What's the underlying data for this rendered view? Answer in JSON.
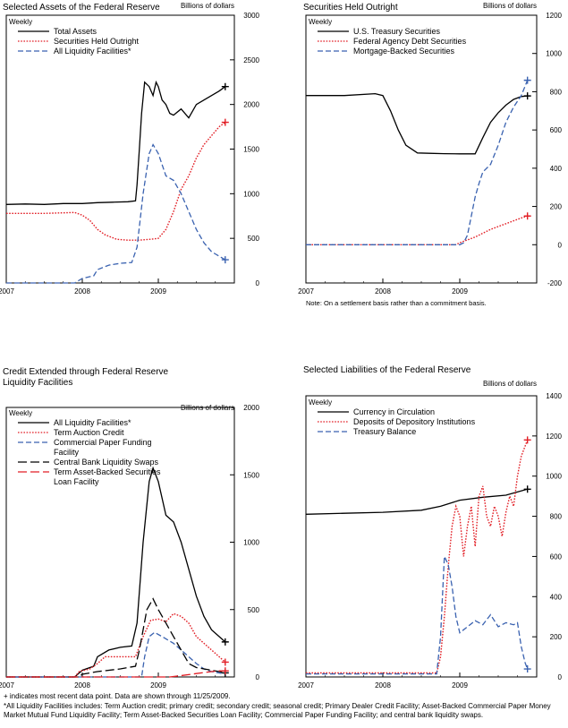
{
  "chart_data": [
    {
      "type": "line",
      "title": "Selected Assets of the Federal Reserve",
      "unit_label": "Billions of dollars",
      "frequency_label": "Weekly",
      "ylim": [
        0,
        3000
      ],
      "yticks": [
        0,
        500,
        1000,
        1500,
        2000,
        2500,
        3000
      ],
      "xlim": [
        2007.0,
        2010.0
      ],
      "xticks": [
        2007,
        2008,
        2009
      ],
      "series": [
        {
          "name": "Total Assets",
          "color": "#000000",
          "dash": "solid",
          "last_marker": true,
          "x": [
            2007.0,
            2007.25,
            2007.5,
            2007.75,
            2008.0,
            2008.2,
            2008.4,
            2008.6,
            2008.7,
            2008.72,
            2008.75,
            2008.78,
            2008.82,
            2008.88,
            2008.93,
            2008.97,
            2009.0,
            2009.05,
            2009.1,
            2009.15,
            2009.2,
            2009.3,
            2009.4,
            2009.5,
            2009.6,
            2009.7,
            2009.8,
            2009.88
          ],
          "y": [
            880,
            885,
            880,
            890,
            890,
            900,
            905,
            910,
            920,
            1100,
            1500,
            1900,
            2250,
            2200,
            2100,
            2250,
            2200,
            2050,
            2000,
            1900,
            1880,
            1950,
            1850,
            2000,
            2050,
            2100,
            2150,
            2200
          ]
        },
        {
          "name": "Securities Held Outright",
          "color": "#e21f26",
          "dash": "dot",
          "last_marker": true,
          "x": [
            2007.0,
            2007.5,
            2007.9,
            2008.0,
            2008.1,
            2008.2,
            2008.3,
            2008.45,
            2008.6,
            2008.75,
            2008.9,
            2009.0,
            2009.1,
            2009.2,
            2009.3,
            2009.4,
            2009.5,
            2009.6,
            2009.7,
            2009.8,
            2009.88
          ],
          "y": [
            780,
            780,
            790,
            760,
            700,
            600,
            540,
            490,
            480,
            480,
            490,
            500,
            600,
            800,
            1050,
            1200,
            1400,
            1550,
            1650,
            1750,
            1800
          ]
        },
        {
          "name": "All Liquidity Facilities*",
          "color": "#3a62b0",
          "dash": "dash",
          "last_marker": true,
          "x": [
            2007.0,
            2007.5,
            2007.9,
            2008.0,
            2008.15,
            2008.2,
            2008.35,
            2008.5,
            2008.65,
            2008.72,
            2008.8,
            2008.88,
            2008.93,
            2009.0,
            2009.1,
            2009.2,
            2009.3,
            2009.4,
            2009.5,
            2009.6,
            2009.7,
            2009.8,
            2009.88
          ],
          "y": [
            0,
            0,
            0,
            50,
            80,
            150,
            200,
            220,
            230,
            400,
            1000,
            1450,
            1550,
            1450,
            1200,
            1150,
            1000,
            800,
            600,
            450,
            350,
            300,
            260
          ]
        }
      ]
    },
    {
      "type": "line",
      "title": "Securities Held Outright",
      "unit_label": "Billions of dollars",
      "frequency_label": "Weekly",
      "note": "Note: On a settlement basis rather than a commitment basis.",
      "ylim": [
        -200,
        1200
      ],
      "yticks": [
        -200,
        0,
        200,
        400,
        600,
        800,
        1000,
        1200
      ],
      "xlim": [
        2007.0,
        2010.0
      ],
      "xticks": [
        2007,
        2008,
        2009
      ],
      "series": [
        {
          "name": "U.S. Treasury Securities",
          "color": "#000000",
          "dash": "solid",
          "last_marker": true,
          "x": [
            2007.0,
            2007.5,
            2007.9,
            2008.0,
            2008.1,
            2008.2,
            2008.3,
            2008.45,
            2008.6,
            2008.8,
            2009.0,
            2009.2,
            2009.3,
            2009.4,
            2009.5,
            2009.6,
            2009.7,
            2009.8,
            2009.88
          ],
          "y": [
            780,
            780,
            790,
            780,
            700,
            600,
            520,
            480,
            478,
            476,
            475,
            475,
            560,
            640,
            690,
            730,
            760,
            775,
            778
          ]
        },
        {
          "name": "Federal Agency Debt Securities",
          "color": "#e21f26",
          "dash": "dot",
          "last_marker": true,
          "x": [
            2007.0,
            2008.5,
            2008.95,
            2009.0,
            2009.2,
            2009.4,
            2009.6,
            2009.8,
            2009.88
          ],
          "y": [
            0,
            0,
            0,
            10,
            40,
            80,
            110,
            140,
            150
          ]
        },
        {
          "name": "Mortgage-Backed Securities",
          "color": "#3a62b0",
          "dash": "dash",
          "last_marker": true,
          "x": [
            2007.0,
            2008.5,
            2009.0,
            2009.05,
            2009.1,
            2009.15,
            2009.2,
            2009.25,
            2009.3,
            2009.4,
            2009.5,
            2009.6,
            2009.7,
            2009.8,
            2009.88
          ],
          "y": [
            0,
            0,
            0,
            10,
            50,
            150,
            250,
            320,
            380,
            420,
            520,
            640,
            720,
            780,
            860
          ]
        }
      ]
    },
    {
      "type": "line",
      "title": "Credit Extended through Federal Reserve Liquidity Facilities",
      "title_lines": [
        "Credit Extended through Federal Reserve",
        "Liquidity Facilities"
      ],
      "unit_label": "Billions of dollars",
      "frequency_label": "Weekly",
      "ylim": [
        0,
        2000
      ],
      "yticks": [
        0,
        500,
        1000,
        1500,
        2000
      ],
      "xlim": [
        2007.0,
        2010.0
      ],
      "xticks": [
        2007,
        2008,
        2009
      ],
      "series": [
        {
          "name": "All Liquidity Facilities*",
          "color": "#000000",
          "dash": "solid",
          "last_marker": true,
          "x": [
            2007.0,
            2007.5,
            2007.9,
            2008.0,
            2008.15,
            2008.2,
            2008.35,
            2008.5,
            2008.65,
            2008.72,
            2008.8,
            2008.88,
            2008.93,
            2009.0,
            2009.1,
            2009.2,
            2009.3,
            2009.4,
            2009.5,
            2009.6,
            2009.7,
            2009.8,
            2009.88
          ],
          "y": [
            0,
            0,
            0,
            50,
            80,
            150,
            200,
            220,
            230,
            400,
            1000,
            1450,
            1550,
            1450,
            1200,
            1150,
            1000,
            800,
            600,
            450,
            350,
            300,
            260
          ]
        },
        {
          "name": "Term Auction Credit",
          "color": "#e21f26",
          "dash": "dot",
          "last_marker": true,
          "x": [
            2007.0,
            2007.9,
            2007.96,
            2008.1,
            2008.2,
            2008.3,
            2008.5,
            2008.7,
            2008.8,
            2008.9,
            2009.0,
            2009.1,
            2009.2,
            2009.3,
            2009.4,
            2009.5,
            2009.6,
            2009.7,
            2009.8,
            2009.88
          ],
          "y": [
            0,
            0,
            40,
            60,
            100,
            150,
            150,
            150,
            300,
            420,
            430,
            410,
            470,
            450,
            400,
            300,
            250,
            200,
            150,
            110
          ]
        },
        {
          "name": "Commercial Paper Funding Facility",
          "color": "#3a62b0",
          "dash": "dash",
          "last_marker": false,
          "x": [
            2007.0,
            2008.78,
            2008.82,
            2008.88,
            2008.95,
            2009.05,
            2009.2,
            2009.3,
            2009.4,
            2009.5,
            2009.6,
            2009.7,
            2009.8,
            2009.88
          ],
          "y": [
            0,
            0,
            150,
            300,
            330,
            300,
            250,
            200,
            150,
            100,
            60,
            40,
            30,
            20
          ]
        },
        {
          "name": "Central Bank Liquidity Swaps",
          "color": "#000000",
          "dash": "longdash",
          "last_marker": true,
          "x": [
            2007.0,
            2007.95,
            2008.0,
            2008.2,
            2008.5,
            2008.7,
            2008.75,
            2008.85,
            2008.93,
            2009.0,
            2009.1,
            2009.2,
            2009.3,
            2009.4,
            2009.5,
            2009.6,
            2009.7,
            2009.8,
            2009.88
          ],
          "y": [
            0,
            0,
            20,
            40,
            60,
            80,
            200,
            500,
            580,
            500,
            400,
            300,
            200,
            100,
            70,
            60,
            50,
            40,
            30
          ]
        },
        {
          "name": "Term Asset-Backed Securities Loan Facility",
          "color": "#e21f26",
          "dash": "longdash",
          "last_marker": true,
          "x": [
            2007.0,
            2009.15,
            2009.3,
            2009.5,
            2009.7,
            2009.8,
            2009.88
          ],
          "y": [
            0,
            0,
            10,
            25,
            40,
            45,
            45
          ]
        }
      ]
    },
    {
      "type": "line",
      "title": "Selected Liabilities of the Federal Reserve",
      "unit_label": "Billions of dollars",
      "frequency_label": "Weekly",
      "ylim": [
        0,
        1400
      ],
      "yticks": [
        0,
        200,
        400,
        600,
        800,
        1000,
        1200,
        1400
      ],
      "xlim": [
        2007.0,
        2010.0
      ],
      "xticks": [
        2007,
        2008,
        2009
      ],
      "series": [
        {
          "name": "Currency in Circulation",
          "color": "#000000",
          "dash": "solid",
          "last_marker": true,
          "x": [
            2007.0,
            2007.5,
            2008.0,
            2008.5,
            2008.75,
            2009.0,
            2009.3,
            2009.6,
            2009.88
          ],
          "y": [
            810,
            815,
            820,
            830,
            850,
            880,
            895,
            905,
            935
          ]
        },
        {
          "name": "Deposits of Depository Institutions",
          "color": "#e21f26",
          "dash": "dot",
          "last_marker": true,
          "x": [
            2007.0,
            2008.0,
            2008.7,
            2008.75,
            2008.8,
            2008.85,
            2008.9,
            2008.95,
            2009.0,
            2009.05,
            2009.1,
            2009.15,
            2009.2,
            2009.25,
            2009.3,
            2009.35,
            2009.4,
            2009.45,
            2009.5,
            2009.55,
            2009.6,
            2009.65,
            2009.7,
            2009.75,
            2009.8,
            2009.85,
            2009.88
          ],
          "y": [
            20,
            20,
            20,
            100,
            300,
            550,
            750,
            850,
            800,
            600,
            750,
            850,
            650,
            900,
            950,
            800,
            750,
            850,
            800,
            700,
            820,
            900,
            850,
            1000,
            1100,
            1150,
            1180
          ]
        },
        {
          "name": "Treasury Balance",
          "color": "#3a62b0",
          "dash": "dash",
          "last_marker": true,
          "x": [
            2007.0,
            2008.0,
            2008.7,
            2008.75,
            2008.8,
            2008.85,
            2008.9,
            2008.95,
            2009.0,
            2009.1,
            2009.2,
            2009.3,
            2009.4,
            2009.5,
            2009.6,
            2009.7,
            2009.75,
            2009.8,
            2009.85,
            2009.88
          ],
          "y": [
            15,
            15,
            15,
            200,
            600,
            560,
            450,
            300,
            220,
            250,
            280,
            260,
            310,
            250,
            270,
            260,
            270,
            150,
            70,
            40
          ]
        }
      ]
    }
  ],
  "footnotes": {
    "marker_note": "+ indicates most recent data point. Data are shown through 11/25/2009.",
    "liquidity_note": "*All Liquidity Facilities includes: Term Auction credit; primary credit; secondary credit; seasonal credit; Primary Dealer Credit Facility; Asset-Backed Commercial Paper Money Market Mutual Fund Liquidity Facility; Term Asset-Backed Securities Loan Facility; Commercial Paper Funding Facility; and central bank liquidity swaps."
  }
}
